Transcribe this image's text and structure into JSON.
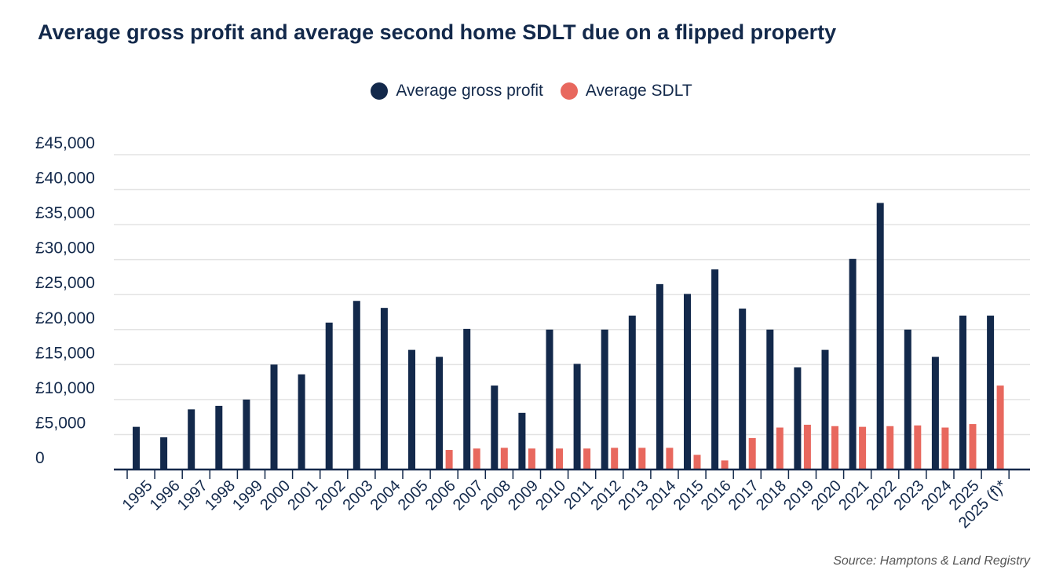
{
  "chart_data": {
    "type": "bar",
    "title": "Average gross profit and average second home SDLT due on a flipped property",
    "categories": [
      "1995",
      "1996",
      "1997",
      "1998",
      "1999",
      "2000",
      "2001",
      "2002",
      "2003",
      "2004",
      "2005",
      "2006",
      "2007",
      "2008",
      "2009",
      "2010",
      "2011",
      "2012",
      "2013",
      "2014",
      "2015",
      "2016",
      "2017",
      "2018",
      "2019",
      "2020",
      "2021",
      "2022",
      "2023",
      "2024",
      "2025",
      "2025 (f)*"
    ],
    "series": [
      {
        "name": "Average gross profit",
        "color": "#13294b",
        "values": [
          6100,
          4600,
          8600,
          9100,
          10000,
          15000,
          13600,
          21000,
          24100,
          23100,
          17100,
          16100,
          20100,
          12000,
          8100,
          20000,
          15100,
          20000,
          22000,
          26500,
          25100,
          28600,
          23000,
          20000,
          14600,
          17100,
          30100,
          38100,
          20000,
          16100,
          22000,
          22000
        ]
      },
      {
        "name": "Average SDLT",
        "color": "#e8685e",
        "values": [
          null,
          null,
          null,
          null,
          null,
          null,
          null,
          null,
          null,
          null,
          null,
          2800,
          3000,
          3100,
          3000,
          3000,
          3000,
          3100,
          3100,
          3100,
          2100,
          1300,
          4500,
          6000,
          6400,
          6200,
          6100,
          6200,
          6300,
          6000,
          6500,
          12000
        ]
      }
    ],
    "yticks": [
      "0",
      "£5,000",
      "£10,000",
      "£15,000",
      "£20,000",
      "£25,000",
      "£30,000",
      "£35,000",
      "£40,000",
      "£45,000"
    ],
    "ylim": [
      0,
      45000
    ],
    "grid": true,
    "legend_position": "top-center",
    "xlabel": "",
    "ylabel": "",
    "source": "Source: Hamptons  & Land Registry"
  }
}
